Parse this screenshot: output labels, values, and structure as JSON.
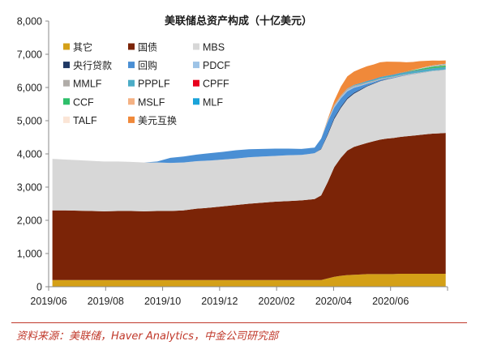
{
  "source_text": "资料来源：美联储，Haver Analytics，中金公司研究部",
  "chart_data": {
    "type": "area",
    "stacked": true,
    "title": "美联储总资产构成（十亿美元）",
    "xlabel": "",
    "ylabel": "",
    "ylim": [
      0,
      8000
    ],
    "y_ticks": [
      "0",
      "1,000",
      "2,000",
      "3,000",
      "4,000",
      "5,000",
      "6,000",
      "7,000",
      "8,000"
    ],
    "x_ticks": [
      "2019/06",
      "2019/08",
      "2019/10",
      "2019/12",
      "2020/02",
      "2020/04",
      "2020/06"
    ],
    "grid": false,
    "legend_position": "top-left inside",
    "x": [
      "2019-06-05",
      "2019-06-19",
      "2019-07-03",
      "2019-07-17",
      "2019-07-31",
      "2019-08-14",
      "2019-08-28",
      "2019-09-11",
      "2019-09-25",
      "2019-10-09",
      "2019-10-23",
      "2019-11-06",
      "2019-11-20",
      "2019-12-04",
      "2019-12-18",
      "2020-01-01",
      "2020-01-15",
      "2020-01-29",
      "2020-02-12",
      "2020-02-26",
      "2020-03-11",
      "2020-03-18",
      "2020-03-25",
      "2020-04-01",
      "2020-04-08",
      "2020-04-15",
      "2020-04-22",
      "2020-04-29",
      "2020-05-06",
      "2020-05-13",
      "2020-05-20",
      "2020-05-27",
      "2020-06-03",
      "2020-06-10",
      "2020-06-17",
      "2020-06-24",
      "2020-07-01",
      "2020-07-08",
      "2020-07-15",
      "2020-07-22",
      "2020-07-29"
    ],
    "series": [
      {
        "name": "其它",
        "color": "#d4a017",
        "values": [
          200,
          200,
          200,
          200,
          200,
          200,
          200,
          200,
          200,
          200,
          200,
          200,
          200,
          200,
          200,
          200,
          200,
          200,
          200,
          200,
          200,
          200,
          250,
          300,
          330,
          350,
          360,
          370,
          380,
          380,
          380,
          380,
          380,
          390,
          390,
          390,
          390,
          390,
          390,
          390,
          390
        ]
      },
      {
        "name": "国债",
        "color": "#7b2407",
        "values": [
          2100,
          2100,
          2090,
          2080,
          2070,
          2080,
          2080,
          2070,
          2080,
          2080,
          2100,
          2150,
          2180,
          2220,
          2260,
          2300,
          2330,
          2360,
          2380,
          2400,
          2440,
          2550,
          2900,
          3300,
          3550,
          3750,
          3850,
          3900,
          3950,
          4000,
          4050,
          4080,
          4100,
          4120,
          4140,
          4160,
          4180,
          4200,
          4220,
          4230,
          4240
        ]
      },
      {
        "name": "MBS",
        "color": "#d7d7d7",
        "values": [
          1550,
          1530,
          1520,
          1510,
          1500,
          1490,
          1480,
          1470,
          1460,
          1450,
          1440,
          1430,
          1420,
          1410,
          1400,
          1400,
          1390,
          1380,
          1380,
          1370,
          1380,
          1390,
          1420,
          1450,
          1500,
          1550,
          1600,
          1650,
          1700,
          1730,
          1760,
          1780,
          1800,
          1820,
          1840,
          1850,
          1860,
          1870,
          1880,
          1890,
          1900
        ]
      },
      {
        "name": "央行贷款",
        "color": "#1f3864",
        "values": [
          0,
          0,
          0,
          0,
          0,
          0,
          0,
          0,
          0,
          0,
          0,
          0,
          0,
          0,
          0,
          0,
          0,
          0,
          0,
          0,
          0,
          20,
          40,
          45,
          40,
          35,
          30,
          25,
          20,
          15,
          12,
          10,
          8,
          6,
          5,
          4,
          3,
          3,
          2,
          2,
          2
        ]
      },
      {
        "name": "回购",
        "color": "#4a8fd4",
        "values": [
          0,
          0,
          0,
          0,
          0,
          0,
          0,
          0,
          30,
          150,
          180,
          200,
          220,
          230,
          250,
          240,
          230,
          220,
          200,
          180,
          170,
          300,
          350,
          300,
          250,
          200,
          150,
          100,
          60,
          40,
          30,
          20,
          15,
          10,
          5,
          5,
          3,
          3,
          2,
          2,
          2
        ]
      },
      {
        "name": "PDCF",
        "color": "#9dc3e6",
        "values": [
          0,
          0,
          0,
          0,
          0,
          0,
          0,
          0,
          0,
          0,
          0,
          0,
          0,
          0,
          0,
          0,
          0,
          0,
          0,
          0,
          0,
          0,
          30,
          35,
          35,
          30,
          25,
          20,
          15,
          10,
          8,
          6,
          5,
          4,
          3,
          3,
          3,
          2,
          2,
          2,
          2
        ]
      },
      {
        "name": "MMLF",
        "color": "#b0aca8",
        "values": [
          0,
          0,
          0,
          0,
          0,
          0,
          0,
          0,
          0,
          0,
          0,
          0,
          0,
          0,
          0,
          0,
          0,
          0,
          0,
          0,
          0,
          0,
          30,
          50,
          50,
          45,
          40,
          35,
          30,
          28,
          25,
          22,
          20,
          18,
          16,
          14,
          12,
          10,
          9,
          8,
          7
        ]
      },
      {
        "name": "PPPLF",
        "color": "#4bacc6",
        "values": [
          0,
          0,
          0,
          0,
          0,
          0,
          0,
          0,
          0,
          0,
          0,
          0,
          0,
          0,
          0,
          0,
          0,
          0,
          0,
          0,
          0,
          0,
          0,
          0,
          0,
          10,
          20,
          30,
          40,
          45,
          50,
          55,
          60,
          62,
          64,
          66,
          68,
          70,
          70,
          70,
          70
        ]
      },
      {
        "name": "CPFF",
        "color": "#e8001c",
        "values": [
          0,
          0,
          0,
          0,
          0,
          0,
          0,
          0,
          0,
          0,
          0,
          0,
          0,
          0,
          0,
          0,
          0,
          0,
          0,
          0,
          0,
          0,
          0,
          0,
          0,
          4,
          5,
          5,
          5,
          5,
          5,
          5,
          5,
          5,
          5,
          5,
          5,
          5,
          5,
          5,
          5
        ]
      },
      {
        "name": "CCF",
        "color": "#2ebf6a",
        "values": [
          0,
          0,
          0,
          0,
          0,
          0,
          0,
          0,
          0,
          0,
          0,
          0,
          0,
          0,
          0,
          0,
          0,
          0,
          0,
          0,
          0,
          0,
          0,
          0,
          0,
          0,
          0,
          0,
          0,
          0,
          0,
          0,
          0,
          5,
          10,
          20,
          30,
          40,
          45,
          45,
          45
        ]
      },
      {
        "name": "MSLF",
        "color": "#f4b183",
        "values": [
          0,
          0,
          0,
          0,
          0,
          0,
          0,
          0,
          0,
          0,
          0,
          0,
          0,
          0,
          0,
          0,
          0,
          0,
          0,
          0,
          0,
          0,
          0,
          0,
          0,
          0,
          0,
          0,
          0,
          0,
          0,
          0,
          0,
          0,
          0,
          0,
          0,
          10,
          15,
          20,
          25
        ]
      },
      {
        "name": "MLF",
        "color": "#1aa3d9",
        "values": [
          0,
          0,
          0,
          0,
          0,
          0,
          0,
          0,
          0,
          0,
          0,
          0,
          0,
          0,
          0,
          0,
          0,
          0,
          0,
          0,
          0,
          0,
          0,
          0,
          0,
          0,
          0,
          0,
          0,
          0,
          0,
          0,
          0,
          1,
          2,
          5,
          8,
          10,
          12,
          15,
          16
        ]
      },
      {
        "name": "TALF",
        "color": "#fbe5d6",
        "values": [
          0,
          0,
          0,
          0,
          0,
          0,
          0,
          0,
          0,
          0,
          0,
          0,
          0,
          0,
          0,
          0,
          0,
          0,
          0,
          0,
          0,
          0,
          0,
          0,
          0,
          0,
          0,
          0,
          0,
          0,
          0,
          0,
          0,
          0,
          0,
          5,
          10,
          10,
          10,
          10,
          10
        ]
      },
      {
        "name": "美元互换",
        "color": "#f0893a",
        "values": [
          0,
          0,
          0,
          0,
          0,
          0,
          0,
          0,
          0,
          0,
          0,
          0,
          0,
          0,
          0,
          0,
          0,
          0,
          0,
          0,
          0,
          0,
          30,
          120,
          270,
          360,
          400,
          430,
          440,
          440,
          440,
          420,
          380,
          330,
          280,
          240,
          220,
          180,
          150,
          120,
          100
        ]
      }
    ]
  }
}
